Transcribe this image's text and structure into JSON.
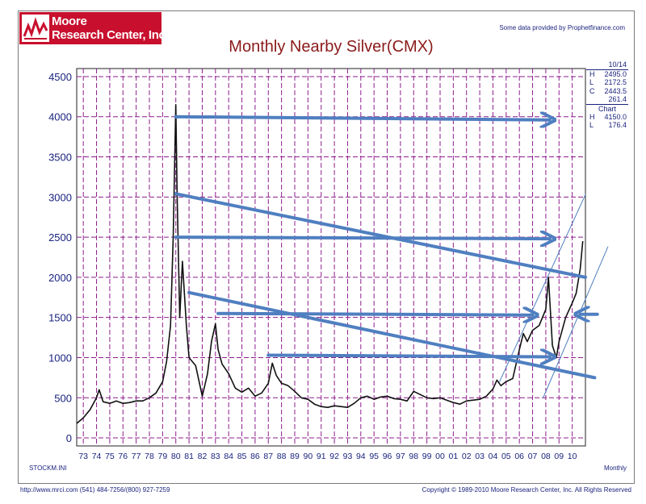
{
  "header": {
    "logo_line1": "Moore",
    "logo_line2": "Research Center, Inc.",
    "source_note": "Some data provided by Prophetfinance.com"
  },
  "side_panel": {
    "period": "10/14",
    "rows": [
      {
        "key": "H",
        "value": "2495.0"
      },
      {
        "key": "L",
        "value": "2172.5"
      },
      {
        "key": "C",
        "value": "2443.5"
      },
      {
        "key": "",
        "value": "261.4"
      }
    ],
    "chart_label": "Chart",
    "chart_rows": [
      {
        "key": "H",
        "value": "4150.0"
      },
      {
        "key": "L",
        "value": "176.4"
      }
    ]
  },
  "footer": {
    "left": "http://www.mrci.com   (541) 484-7256/(800) 927-7259",
    "right": "Copyright © 1989-2010 Moore Research Center, Inc. All Rights Reserved",
    "corner_left": "STOCKM.INI",
    "corner_right": "Monthly"
  },
  "colors": {
    "brand": "#c8102e",
    "grid": "#8e1d8e",
    "price_line": "#111111",
    "arrows": "#4f7fc0",
    "axis_text": "#1a237e",
    "title": "#8b1a1a"
  },
  "chart_data": {
    "type": "line",
    "title": "Monthly Nearby Silver(CMX)",
    "xlabel": "",
    "ylabel": "",
    "x_tick_labels": [
      "73",
      "74",
      "75",
      "76",
      "77",
      "78",
      "79",
      "80",
      "81",
      "82",
      "83",
      "84",
      "85",
      "86",
      "87",
      "88",
      "89",
      "90",
      "91",
      "92",
      "93",
      "94",
      "95",
      "96",
      "97",
      "98",
      "99",
      "00",
      "01",
      "02",
      "03",
      "04",
      "05",
      "06",
      "07",
      "08",
      "09",
      "10"
    ],
    "xlim": [
      1972.5,
      2011.0
    ],
    "y_ticks": [
      0,
      500,
      1000,
      1500,
      2000,
      2500,
      3000,
      3500,
      4000,
      4500
    ],
    "ylim": [
      -100,
      4600
    ],
    "grid": true,
    "series": [
      {
        "x": [
          1972.5,
          1973.0,
          1973.5,
          1974.0,
          1974.2,
          1974.5,
          1975.0,
          1975.5,
          1976.0,
          1976.5,
          1977.0,
          1977.5,
          1978.0,
          1978.5,
          1979.0,
          1979.3,
          1979.6,
          1979.8,
          1980.0,
          1980.1,
          1980.3,
          1980.5,
          1980.8,
          1981.0,
          1981.5,
          1982.0,
          1982.4,
          1982.7,
          1983.0,
          1983.2,
          1983.5,
          1984.0,
          1984.5,
          1985.0,
          1985.5,
          1986.0,
          1986.5,
          1987.0,
          1987.3,
          1987.6,
          1988.0,
          1988.5,
          1989.0,
          1989.5,
          1990.0,
          1990.5,
          1991.0,
          1991.5,
          1992.0,
          1992.5,
          1993.0,
          1993.5,
          1994.0,
          1994.5,
          1995.0,
          1995.5,
          1996.0,
          1996.5,
          1997.0,
          1997.5,
          1998.0,
          1998.5,
          1999.0,
          1999.5,
          2000.0,
          2000.5,
          2001.0,
          2001.5,
          2002.0,
          2002.5,
          2003.0,
          2003.5,
          2004.0,
          2004.3,
          2004.6,
          2005.0,
          2005.5,
          2006.0,
          2006.3,
          2006.6,
          2007.0,
          2007.5,
          2008.0,
          2008.2,
          2008.5,
          2008.8,
          2009.0,
          2009.5,
          2010.0,
          2010.3,
          2010.6,
          2010.8
        ],
        "y": [
          180,
          250,
          350,
          500,
          600,
          450,
          430,
          460,
          430,
          440,
          460,
          460,
          500,
          560,
          700,
          950,
          1400,
          2500,
          4150,
          3000,
          1500,
          2200,
          1400,
          1000,
          900,
          520,
          800,
          1200,
          1420,
          1100,
          920,
          800,
          620,
          570,
          620,
          520,
          560,
          680,
          930,
          780,
          680,
          650,
          580,
          500,
          480,
          420,
          390,
          380,
          400,
          390,
          380,
          430,
          500,
          520,
          480,
          510,
          520,
          490,
          480,
          460,
          580,
          540,
          500,
          490,
          500,
          470,
          440,
          420,
          460,
          470,
          480,
          520,
          610,
          720,
          650,
          700,
          740,
          1100,
          1300,
          1200,
          1340,
          1400,
          1600,
          2000,
          1150,
          1000,
          1200,
          1500,
          1680,
          1800,
          2100,
          2450
        ]
      }
    ],
    "annotations": [
      {
        "type": "arrow",
        "x1": 1980.0,
        "y1": 4000,
        "x2": 2008.3,
        "y2": 3960
      },
      {
        "type": "arrow",
        "x1": 1980.0,
        "y1": 2500,
        "x2": 2008.3,
        "y2": 2480
      },
      {
        "type": "arrow",
        "x1": 1983.2,
        "y1": 1550,
        "x2": 2007.0,
        "y2": 1530
      },
      {
        "type": "arrow",
        "x1": 1987.0,
        "y1": 1030,
        "x2": 2008.3,
        "y2": 1010
      },
      {
        "type": "arrow",
        "x1": 2011.9,
        "y1": 1540,
        "x2": 2010.6,
        "y2": 1540
      },
      {
        "type": "line",
        "x1": 1980.0,
        "y1": 3040,
        "x2": 2011.0,
        "y2": 2000
      },
      {
        "type": "line",
        "x1": 1981.0,
        "y1": 1810,
        "x2": 2011.7,
        "y2": 750
      },
      {
        "type": "line",
        "x1": 2004.5,
        "y1": 700,
        "x2": 2011.0,
        "y2": 3030
      },
      {
        "type": "line",
        "x1": 2007.8,
        "y1": 500,
        "x2": 2012.7,
        "y2": 2380
      }
    ]
  }
}
